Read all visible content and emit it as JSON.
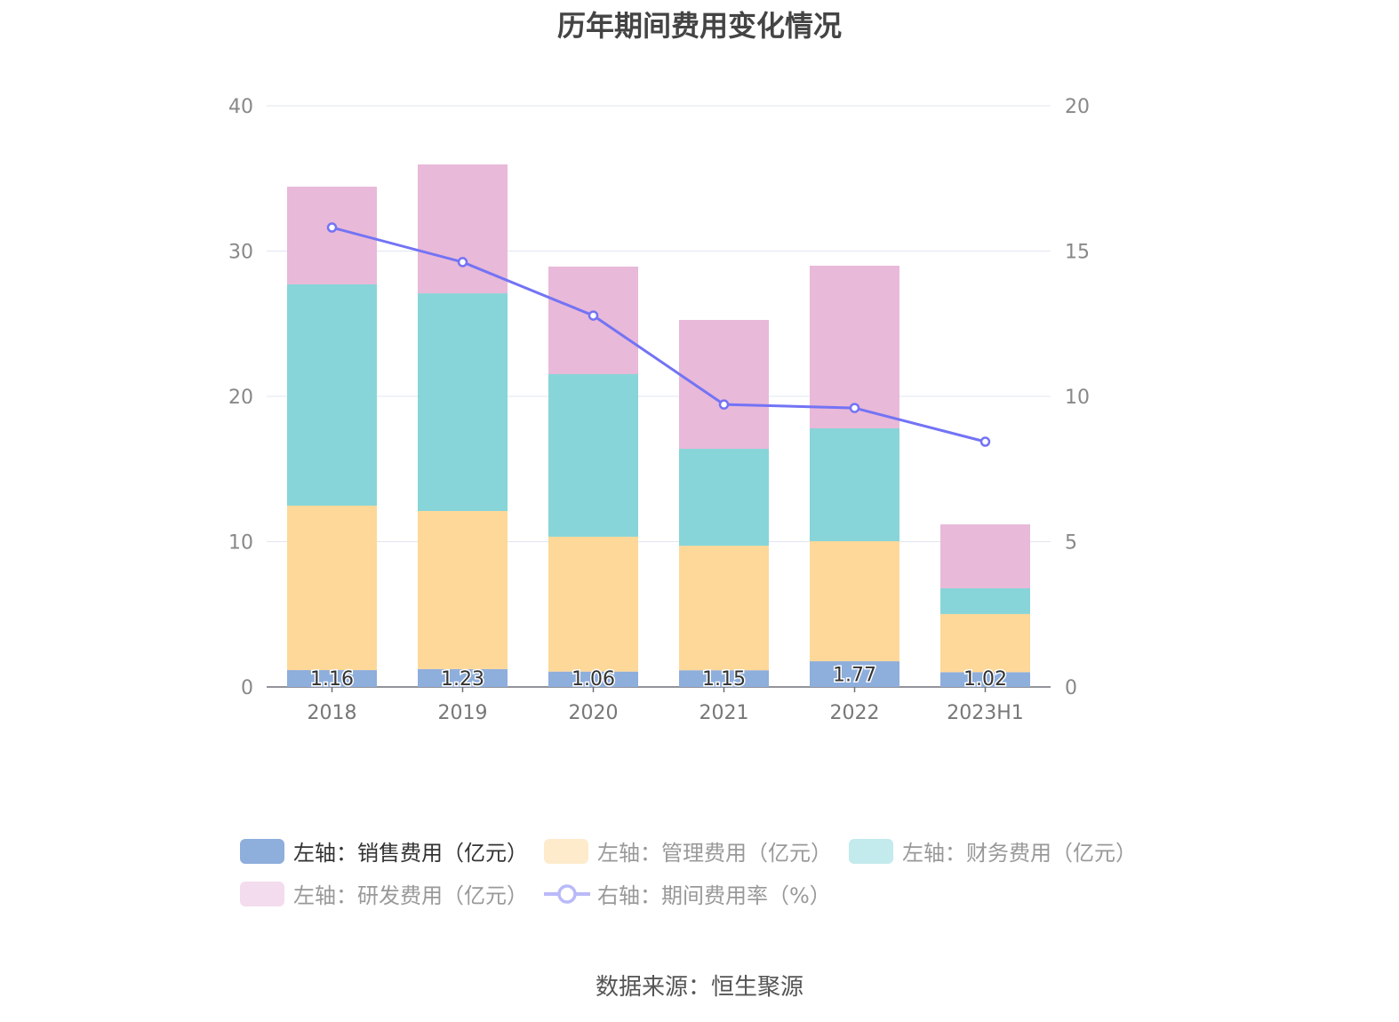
{
  "title": "历年期间费用变化情况",
  "source": "数据来源：恒生聚源",
  "chart_data": {
    "type": "bar",
    "stacked": true,
    "categories": [
      "2018",
      "2019",
      "2020",
      "2021",
      "2022",
      "2023H1"
    ],
    "left_axis": {
      "min": 0,
      "max": 40,
      "ticks": [
        0,
        10,
        20,
        30,
        40
      ]
    },
    "right_axis": {
      "min": 0,
      "max": 20,
      "ticks": [
        0,
        5,
        10,
        15,
        20
      ]
    },
    "series": [
      {
        "name": "左轴：销售费用（亿元）",
        "type": "bar",
        "axis": "left",
        "color": "#8eaedc",
        "values": [
          1.16,
          1.23,
          1.06,
          1.15,
          1.77,
          1.02
        ],
        "show_labels": true,
        "legend_active": true,
        "legend_color": "#8eaedc"
      },
      {
        "name": "左轴：管理费用（亿元）",
        "type": "bar",
        "axis": "left",
        "color": "#fed899",
        "values": [
          11.32,
          10.88,
          9.28,
          8.57,
          8.26,
          4.0
        ],
        "legend_active": false,
        "legend_color": "#feebcc"
      },
      {
        "name": "左轴：财务费用（亿元）",
        "type": "bar",
        "axis": "left",
        "color": "#87d5d8",
        "values": [
          15.23,
          14.98,
          11.19,
          6.67,
          7.77,
          1.77
        ],
        "legend_active": false,
        "legend_color": "#c3eaec"
      },
      {
        "name": "左轴：研发费用（亿元）",
        "type": "bar",
        "axis": "left",
        "color": "#e8b9d8",
        "values": [
          6.72,
          8.87,
          7.4,
          8.87,
          11.19,
          4.4
        ],
        "legend_active": false,
        "legend_color": "#f3dced"
      },
      {
        "name": "右轴：期间费用率（%）",
        "type": "line",
        "axis": "right",
        "color": "#7373f5",
        "values": [
          15.81,
          14.62,
          12.78,
          9.72,
          9.6,
          8.44
        ],
        "legend_active": false,
        "legend_color": "#b9b9fa"
      }
    ],
    "legend_placement": "bottom",
    "grid": true
  }
}
